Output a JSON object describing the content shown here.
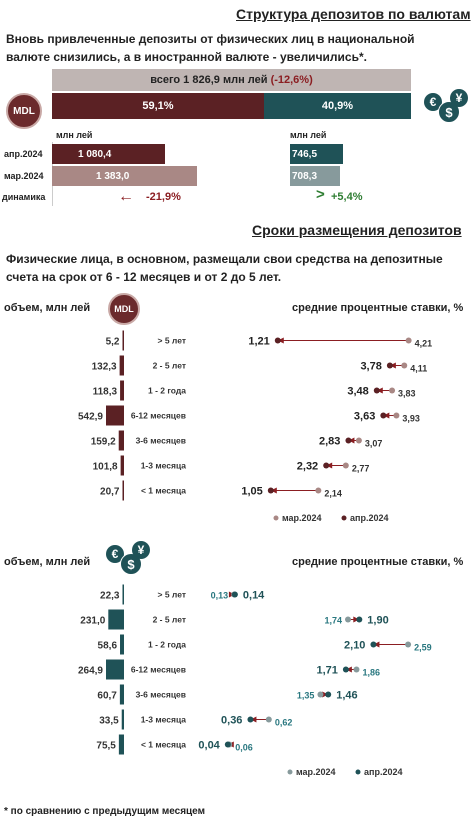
{
  "section1": {
    "title": "Структура депозитов по валютам",
    "paragraph": "Вновь привлеченные депозиты от физических лиц в национальной валюте снизились, а в иностранной валюте - увеличились*.",
    "total_label": "всего 1 826,9 млн лей",
    "total_change": "(-12,6%)",
    "mdl_badge": "MDL",
    "share_mdl": "59,1%",
    "share_fx": "40,9%",
    "share_mdl_value": 59.1,
    "unit_left": "млн лей",
    "unit_right": "млн лей",
    "rows": [
      "апр.2024",
      "мар.2024",
      "динамика"
    ],
    "mdl_apr": "1 080,4",
    "mdl_mar": "1 383,0",
    "mdl_change": "-21,9%",
    "fx_apr": "746,5",
    "fx_mar": "708,3",
    "fx_change": "+5,4%",
    "currency_icons": [
      "euro-icon",
      "dollar-icon",
      "yen-icon"
    ]
  },
  "section2": {
    "title": "Сроки размещения депозитов",
    "paragraph": "Физические лица, в основном, размещали свои средства на депозитные счета на срок от 6 - 12 месяцев и от 2 до 5 лет."
  },
  "chart_labels": {
    "volume_label": "объем, млн лей",
    "rates_label": "средние процентные ставки, %",
    "legend_mar": "мар.2024",
    "legend_apr": "апр.2024"
  },
  "footnote": "* по сравнению с предыдущим месяцем",
  "colors": {
    "mdl_dark": "#5b2124",
    "mdl_light": "#a98885",
    "fx_dark": "#1f5257",
    "fx_light": "#879a9c",
    "red_arrow": "#8b1e22",
    "green": "#2e7d32",
    "total_bar": "#bfb5b3"
  },
  "chart_data": [
    {
      "type": "bar",
      "currency": "MDL",
      "categories": [
        "> 5 лет",
        "2 - 5 лет",
        "1 - 2 года",
        "6-12 месяцев",
        "3-6 месяцев",
        "1-3 месяца",
        "< 1 месяца"
      ],
      "values": [
        5.2,
        132.3,
        118.3,
        542.9,
        159.2,
        101.8,
        20.7
      ],
      "value_labels": [
        "5,2",
        "132,3",
        "118,3",
        "542,9",
        "159,2",
        "101,8",
        "20,7"
      ],
      "max": 542.9
    },
    {
      "type": "scatter",
      "currency": "MDL",
      "categories": [
        "> 5 лет",
        "2 - 5 лет",
        "1 - 2 года",
        "6-12 месяцев",
        "3-6 месяцев",
        "1-3 месяца",
        "< 1 месяца"
      ],
      "series": [
        {
          "name": "мар.2024",
          "values": [
            4.21,
            4.11,
            3.83,
            3.93,
            3.07,
            2.77,
            2.14
          ],
          "labels": [
            "4,21",
            "4,11",
            "3,83",
            "3,93",
            "3,07",
            "2,77",
            "2,14"
          ]
        },
        {
          "name": "апр.2024",
          "values": [
            1.21,
            3.78,
            3.48,
            3.63,
            2.83,
            2.32,
            1.05
          ],
          "labels": [
            "1,21",
            "3,78",
            "3,48",
            "3,63",
            "2,83",
            "2,32",
            "1,05"
          ]
        }
      ],
      "xlim": [
        0,
        4.7
      ]
    },
    {
      "type": "bar",
      "currency": "FX",
      "categories": [
        "> 5 лет",
        "2 - 5 лет",
        "1 - 2 года",
        "6-12 месяцев",
        "3-6 месяцев",
        "1-3 месяца",
        "< 1 месяца"
      ],
      "values": [
        22.3,
        231.0,
        58.6,
        264.9,
        60.7,
        33.5,
        75.5
      ],
      "value_labels": [
        "22,3",
        "231,0",
        "58,6",
        "264,9",
        "60,7",
        "33,5",
        "75,5"
      ],
      "max": 264.9
    },
    {
      "type": "scatter",
      "currency": "FX",
      "categories": [
        "> 5 лет",
        "2 - 5 лет",
        "1 - 2 года",
        "6-12 месяцев",
        "3-6 месяцев",
        "1-3 месяца",
        "< 1 месяца"
      ],
      "series": [
        {
          "name": "мар.2024",
          "values": [
            0.13,
            1.74,
            2.59,
            1.86,
            1.35,
            0.62,
            0.06
          ],
          "labels": [
            "0,13",
            "1,74",
            "2,59",
            "1,86",
            "1,35",
            "0,62",
            "0,06"
          ]
        },
        {
          "name": "апр.2024",
          "values": [
            0.14,
            1.9,
            2.1,
            1.71,
            1.46,
            0.36,
            0.04
          ],
          "labels": [
            "0,14",
            "1,90",
            "2,10",
            "1,71",
            "1,46",
            "0,36",
            "0,04"
          ]
        }
      ],
      "xlim": [
        0,
        2.9
      ]
    }
  ]
}
